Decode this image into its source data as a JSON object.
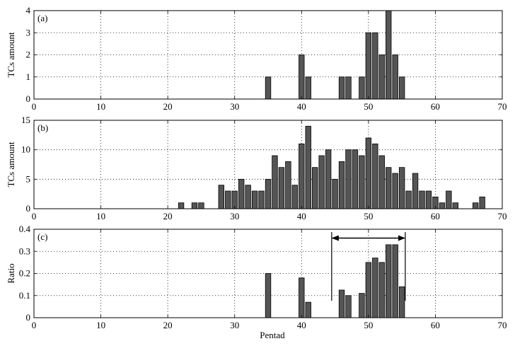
{
  "figure_xlabel": "Pentad",
  "chart_data": [
    {
      "type": "bar",
      "panel_tag": "(a)",
      "ylabel": "TCs amount",
      "xlim": [
        0,
        70
      ],
      "ylim": [
        0,
        4
      ],
      "xticks": [
        0,
        10,
        20,
        30,
        40,
        50,
        60,
        70
      ],
      "yticks": [
        0,
        1,
        2,
        3,
        4
      ],
      "grid": true,
      "x": [
        35,
        40,
        41,
        46,
        47,
        49,
        50,
        51,
        52,
        53,
        54,
        55
      ],
      "values": [
        1,
        2,
        1,
        1,
        1,
        1,
        3,
        3,
        2,
        4,
        2,
        1
      ]
    },
    {
      "type": "bar",
      "panel_tag": "(b)",
      "ylabel": "TCs amount",
      "xlim": [
        0,
        70
      ],
      "ylim": [
        0,
        15
      ],
      "xticks": [
        0,
        10,
        20,
        30,
        40,
        50,
        60,
        70
      ],
      "yticks": [
        0,
        5,
        10,
        15
      ],
      "grid": true,
      "x": [
        22,
        24,
        25,
        28,
        29,
        30,
        31,
        32,
        33,
        34,
        35,
        36,
        37,
        38,
        39,
        40,
        41,
        42,
        43,
        44,
        45,
        46,
        47,
        48,
        49,
        50,
        51,
        52,
        53,
        54,
        55,
        56,
        57,
        58,
        59,
        60,
        61,
        62,
        63,
        64,
        66,
        67
      ],
      "values": [
        1,
        1,
        1,
        4,
        3,
        3,
        5,
        4,
        3,
        3,
        5,
        9,
        7,
        8,
        4,
        11,
        14,
        7,
        9,
        10,
        5,
        8,
        10,
        10,
        9,
        12,
        11,
        9,
        7,
        6,
        7,
        3,
        6,
        3,
        3,
        2,
        1,
        3,
        1,
        0,
        1,
        2
      ]
    },
    {
      "type": "bar",
      "panel_tag": "(c)",
      "ylabel": "Ratio",
      "xlim": [
        0,
        70
      ],
      "ylim": [
        0,
        0.4
      ],
      "xticks": [
        0,
        10,
        20,
        30,
        40,
        50,
        60,
        70
      ],
      "yticks": [
        0,
        0.1,
        0.2,
        0.3,
        0.4
      ],
      "grid": true,
      "x": [
        35,
        40,
        41,
        46,
        47,
        49,
        50,
        51,
        52,
        53,
        54,
        55
      ],
      "values": [
        0.2,
        0.18,
        0.07,
        0.125,
        0.1,
        0.11,
        0.25,
        0.27,
        0.25,
        0.33,
        0.33,
        0.14
      ],
      "annotation": {
        "type": "double-arrow-span",
        "x_start": 44.5,
        "x_end": 55.5,
        "arrow_y": 0.36
      }
    }
  ]
}
